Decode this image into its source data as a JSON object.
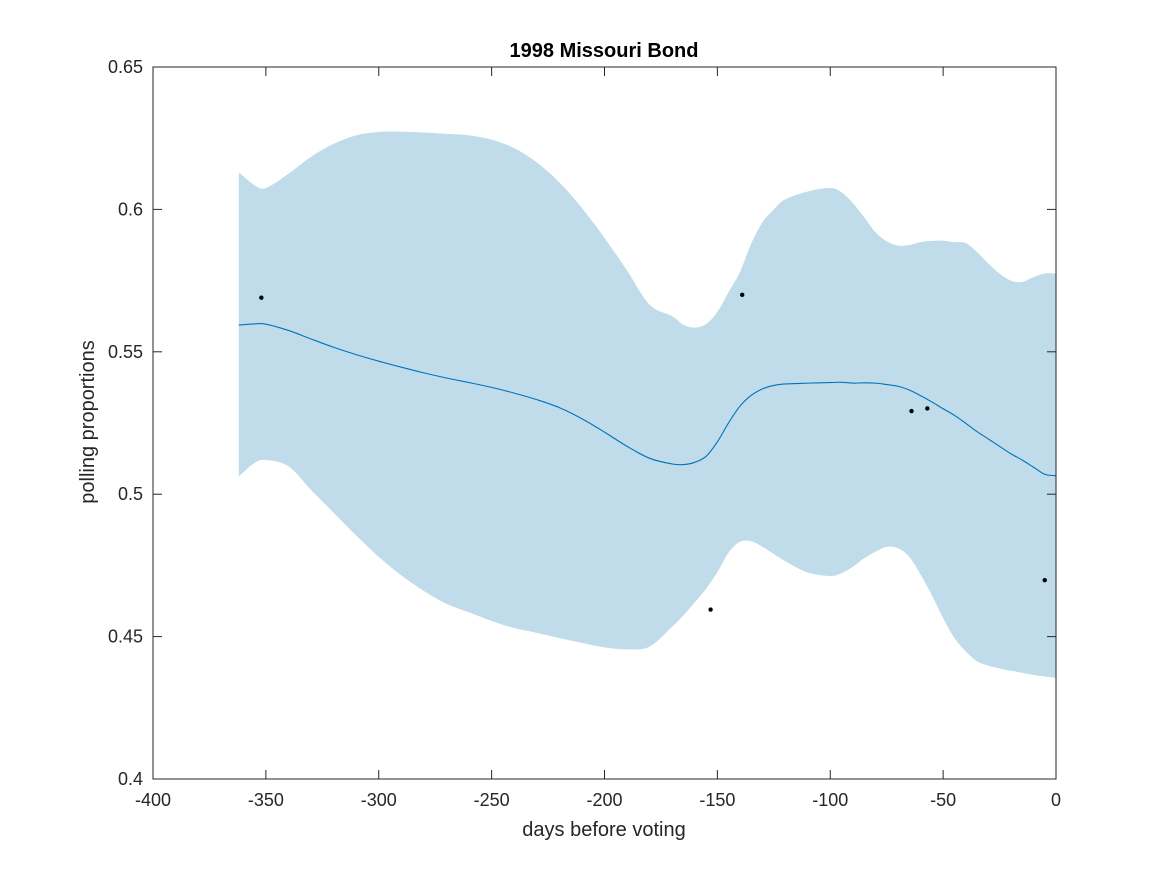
{
  "chart_data": {
    "type": "line",
    "title": "1998 Missouri Bond",
    "xlabel": "days before voting",
    "ylabel": "polling proportions",
    "xlim": [
      -400,
      0
    ],
    "ylim": [
      0.4,
      0.65
    ],
    "xticks": [
      -400,
      -350,
      -300,
      -250,
      -200,
      -150,
      -100,
      -50,
      0
    ],
    "xtick_labels": [
      "-400",
      "-350",
      "-300",
      "-250",
      "-200",
      "-150",
      "-100",
      "-50",
      "0"
    ],
    "yticks": [
      0.4,
      0.45,
      0.5,
      0.55,
      0.6,
      0.65
    ],
    "ytick_labels": [
      "0.4",
      "0.45",
      "0.5",
      "0.55",
      "0.6",
      "0.65"
    ],
    "grid": false,
    "colors": {
      "band": "#c0dcea",
      "line": "#0072bd",
      "points": "#000000",
      "axes": "#262626"
    },
    "x": [
      -362,
      -355,
      -350,
      -340,
      -330,
      -320,
      -310,
      -300,
      -290,
      -280,
      -270,
      -260,
      -250,
      -240,
      -230,
      -220,
      -210,
      -200,
      -190,
      -180,
      -170,
      -165,
      -160,
      -155,
      -150,
      -145,
      -140,
      -135,
      -130,
      -125,
      -120,
      -110,
      -100,
      -95,
      -90,
      -85,
      -80,
      -75,
      -70,
      -65,
      -60,
      -55,
      -50,
      -45,
      -40,
      -35,
      -30,
      -25,
      -20,
      -15,
      -10,
      -5,
      0
    ],
    "mean": [
      0.5594,
      0.5598,
      0.5597,
      0.5575,
      0.5545,
      0.5516,
      0.549,
      0.5467,
      0.5446,
      0.5426,
      0.5408,
      0.5392,
      0.5375,
      0.5355,
      0.5332,
      0.5304,
      0.5265,
      0.5218,
      0.5168,
      0.5126,
      0.5106,
      0.5104,
      0.5112,
      0.5133,
      0.5184,
      0.5251,
      0.5309,
      0.5347,
      0.537,
      0.5382,
      0.5387,
      0.539,
      0.5392,
      0.5393,
      0.539,
      0.5391,
      0.539,
      0.5385,
      0.5379,
      0.5366,
      0.5346,
      0.5324,
      0.53,
      0.5277,
      0.5249,
      0.522,
      0.5194,
      0.5168,
      0.5142,
      0.512,
      0.5095,
      0.507,
      0.5065
    ],
    "upper": [
      0.613,
      0.6085,
      0.6075,
      0.6125,
      0.6185,
      0.623,
      0.626,
      0.6272,
      0.6273,
      0.627,
      0.6265,
      0.626,
      0.6245,
      0.6215,
      0.6165,
      0.6095,
      0.6005,
      0.59,
      0.5785,
      0.5665,
      0.5625,
      0.5595,
      0.5585,
      0.5597,
      0.564,
      0.571,
      0.578,
      0.588,
      0.5955,
      0.6,
      0.6035,
      0.6063,
      0.6075,
      0.606,
      0.6022,
      0.5973,
      0.592,
      0.5888,
      0.5873,
      0.5875,
      0.5885,
      0.5889,
      0.589,
      0.5885,
      0.5882,
      0.585,
      0.581,
      0.5775,
      0.575,
      0.5745,
      0.5762,
      0.5775,
      0.5775
    ],
    "lower": [
      0.5062,
      0.511,
      0.512,
      0.5098,
      0.5015,
      0.4935,
      0.4855,
      0.478,
      0.4715,
      0.466,
      0.4615,
      0.4585,
      0.4555,
      0.453,
      0.4513,
      0.4495,
      0.4478,
      0.4462,
      0.4455,
      0.4465,
      0.4535,
      0.4575,
      0.462,
      0.4668,
      0.4726,
      0.4795,
      0.4833,
      0.4835,
      0.4815,
      0.479,
      0.4765,
      0.4725,
      0.4713,
      0.4723,
      0.4745,
      0.4775,
      0.4798,
      0.4815,
      0.481,
      0.478,
      0.4718,
      0.4645,
      0.4565,
      0.4495,
      0.4448,
      0.4413,
      0.4398,
      0.4388,
      0.438,
      0.4373,
      0.4365,
      0.436,
      0.4355
    ],
    "points": [
      {
        "x": -352,
        "y": 0.569
      },
      {
        "x": -139,
        "y": 0.57
      },
      {
        "x": -153,
        "y": 0.4595
      },
      {
        "x": -64,
        "y": 0.5292
      },
      {
        "x": -57,
        "y": 0.5301
      },
      {
        "x": -5,
        "y": 0.4698
      }
    ]
  }
}
